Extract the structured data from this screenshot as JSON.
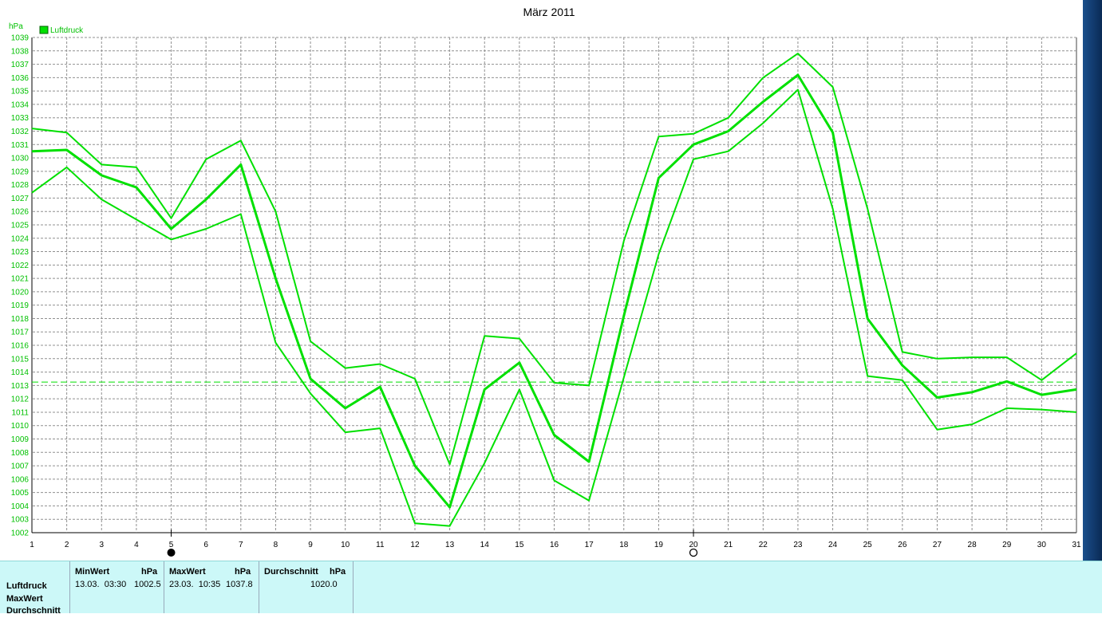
{
  "chart_data": {
    "type": "line",
    "title": "März 2011",
    "ylabel": "hPa",
    "legend": {
      "label": "Luftdruck",
      "color": "#00e000",
      "placement": "top-left"
    },
    "ylim": [
      1002,
      1039
    ],
    "x": [
      1,
      2,
      3,
      4,
      5,
      6,
      7,
      8,
      9,
      10,
      11,
      12,
      13,
      14,
      15,
      16,
      17,
      18,
      19,
      20,
      21,
      22,
      23,
      24,
      25,
      26,
      27,
      28,
      29,
      30,
      31
    ],
    "yticks": [
      1002,
      1003,
      1004,
      1005,
      1006,
      1007,
      1008,
      1009,
      1010,
      1011,
      1012,
      1013,
      1014,
      1015,
      1016,
      1017,
      1018,
      1019,
      1020,
      1021,
      1022,
      1023,
      1024,
      1025,
      1026,
      1027,
      1028,
      1029,
      1030,
      1031,
      1032,
      1033,
      1034,
      1035,
      1036,
      1037,
      1038,
      1039
    ],
    "series": [
      {
        "role": "max",
        "values": [
          1032.2,
          1031.9,
          1029.5,
          1029.3,
          1025.5,
          1029.9,
          1031.3,
          1026.0,
          1016.3,
          1014.3,
          1014.6,
          1013.5,
          1007.1,
          1016.7,
          1016.5,
          1013.2,
          1013.0,
          1023.8,
          1031.6,
          1031.8,
          1033.0,
          1036.0,
          1037.8,
          1035.3,
          1026.2,
          1015.5,
          1015.0,
          1015.1,
          1015.1,
          1013.4,
          1015.4
        ]
      },
      {
        "role": "mean",
        "values": [
          1030.5,
          1030.6,
          1028.7,
          1027.8,
          1024.7,
          1026.9,
          1029.5,
          1021.0,
          1013.5,
          1011.3,
          1012.9,
          1007.0,
          1003.9,
          1012.7,
          1014.7,
          1009.3,
          1007.3,
          1018.2,
          1028.5,
          1031.0,
          1032.0,
          1034.2,
          1036.2,
          1031.9,
          1018.0,
          1014.5,
          1012.1,
          1012.5,
          1013.3,
          1012.3,
          1012.7
        ]
      },
      {
        "role": "min",
        "values": [
          1027.4,
          1029.3,
          1026.9,
          1025.4,
          1023.9,
          1024.7,
          1025.8,
          1016.2,
          1012.4,
          1009.5,
          1009.8,
          1002.7,
          1002.5,
          1007.2,
          1012.7,
          1005.9,
          1004.4,
          1013.6,
          1022.8,
          1029.9,
          1030.5,
          1032.6,
          1035.1,
          1026.2,
          1013.7,
          1013.4,
          1009.7,
          1010.1,
          1011.3,
          1011.2,
          1011.0
        ]
      }
    ],
    "reference_line": {
      "value": 1013.25,
      "style": "dashed"
    },
    "moon_markers": [
      {
        "x": 5,
        "phase": "new-moon"
      },
      {
        "x": 20,
        "phase": "full-moon"
      }
    ],
    "grid": true,
    "color": "#00e000"
  },
  "stats": {
    "rows": [
      "Luftdruck",
      "MaxWert",
      "Durchschnitt"
    ],
    "min": {
      "header": "MinWert",
      "unit": "hPa",
      "time": "13.03.  03:30",
      "value": "1002.5"
    },
    "max": {
      "header": "MaxWert",
      "unit": "hPa",
      "time": "23.03.  10:35",
      "value": "1037.8"
    },
    "avg": {
      "header": "Durchschnitt",
      "unit": "hPa",
      "value": "1020.0"
    }
  }
}
